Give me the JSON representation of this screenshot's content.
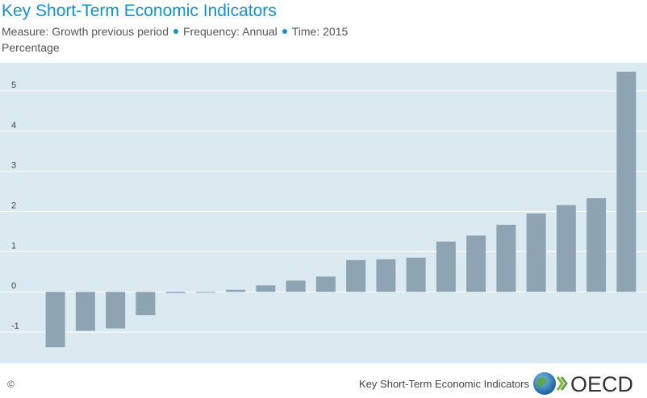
{
  "header": {
    "title": "Key Short-Term Economic Indicators",
    "measure": "Measure: Growth previous period",
    "frequency": "Frequency: Annual",
    "time": "Time: 2015",
    "unit": "Percentage"
  },
  "footer": {
    "copyright": "©",
    "source": "Key Short-Term Economic Indicators",
    "logo_text": "OECD"
  },
  "colors": {
    "accent": "#1b8fc7",
    "plot_bg": "#dbe9f0",
    "bar": "#8fa4b3"
  },
  "chart_data": {
    "type": "bar",
    "values": [
      -1.38,
      -0.97,
      -0.91,
      -0.58,
      -0.03,
      -0.02,
      0.05,
      0.16,
      0.28,
      0.38,
      0.79,
      0.81,
      0.85,
      1.25,
      1.4,
      1.67,
      1.95,
      2.16,
      2.33,
      5.48
    ],
    "ylim": [
      -1.6,
      5.6
    ],
    "yticks": [
      -1,
      0,
      1,
      2,
      3,
      4,
      5
    ],
    "grid": true
  }
}
